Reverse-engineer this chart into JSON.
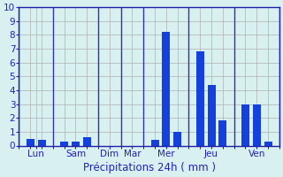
{
  "bars": [
    {
      "x": 1,
      "height": 0.5,
      "group": "Lun"
    },
    {
      "x": 2,
      "height": 0.4,
      "group": "Lun"
    },
    {
      "x": 4,
      "height": 0.3,
      "group": "Sam"
    },
    {
      "x": 5,
      "height": 0.3,
      "group": "Sam"
    },
    {
      "x": 6,
      "height": 0.6,
      "group": "Sam"
    },
    {
      "x": 8,
      "height": 0.0,
      "group": "Dim"
    },
    {
      "x": 10,
      "height": 0.0,
      "group": "Mar"
    },
    {
      "x": 12,
      "height": 0.4,
      "group": "Mer"
    },
    {
      "x": 13,
      "height": 8.2,
      "group": "Mer"
    },
    {
      "x": 14,
      "height": 1.0,
      "group": "Mer"
    },
    {
      "x": 16,
      "height": 6.8,
      "group": "Jeu"
    },
    {
      "x": 17,
      "height": 4.4,
      "group": "Jeu"
    },
    {
      "x": 18,
      "height": 1.8,
      "group": "Jeu"
    },
    {
      "x": 20,
      "height": 3.0,
      "group": "Ven"
    },
    {
      "x": 21,
      "height": 3.0,
      "group": "Ven"
    },
    {
      "x": 22,
      "height": 0.3,
      "group": "Ven"
    }
  ],
  "separators": [
    0,
    3,
    7,
    9,
    11,
    15,
    19,
    23
  ],
  "group_tick_pos": [
    1.5,
    5.0,
    8.0,
    10.0,
    13.0,
    17.0,
    21.0
  ],
  "group_labels": [
    "Lun",
    "Sam",
    "Dim",
    "Mar",
    "Mer",
    "Jeu",
    "Ven"
  ],
  "bar_color": "#1440dd",
  "xlabel": "Précipitations 24h ( mm )",
  "ylim": [
    0,
    10
  ],
  "yticks": [
    0,
    1,
    2,
    3,
    4,
    5,
    6,
    7,
    8,
    9,
    10
  ],
  "xlim": [
    0,
    23
  ],
  "bg_color": "#d8f0f0",
  "grid_color": "#b0b0b0",
  "sep_color": "#3333aa",
  "axis_color": "#2020aa",
  "label_color": "#2222bb",
  "xlabel_fontsize": 8.5,
  "tick_fontsize": 7.5
}
